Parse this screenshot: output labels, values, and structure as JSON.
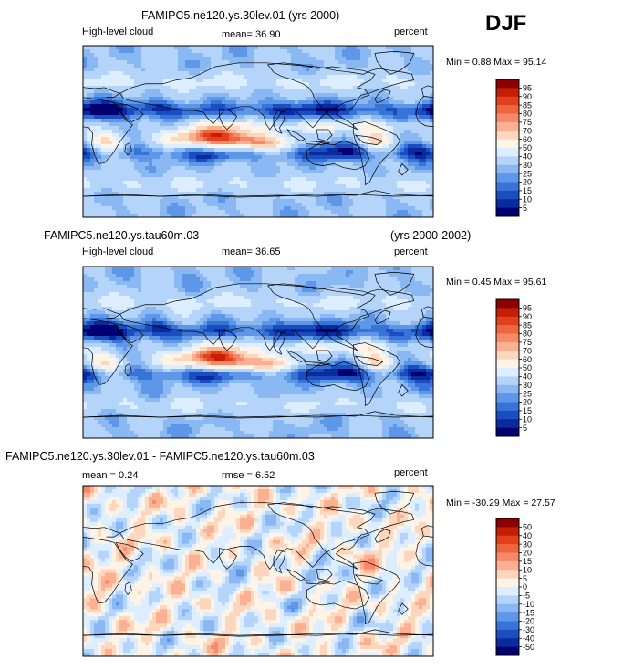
{
  "season": "DJF",
  "colors": {
    "map_boundary": "#000000",
    "background": "#ffffff"
  },
  "chart_data": [
    {
      "type": "heatmap",
      "title": "FAMIPC5.ne120.ys.30lev.01 (yrs 2000)",
      "left_label": "High-level cloud",
      "center_label": "mean=  36.90",
      "right_label": "percent",
      "stats_label": "Min =   0.88 Max =  95.14",
      "min": 0.88,
      "max": 95.14,
      "mean": 36.9,
      "colorbar": {
        "levels": [
          "95",
          "90",
          "85",
          "80",
          "75",
          "70",
          "60",
          "50",
          "40",
          "30",
          "25",
          "20",
          "15",
          "10",
          "5"
        ],
        "colors": [
          "#8c0000",
          "#c41e04",
          "#e0401c",
          "#ee6640",
          "#f68a68",
          "#fbb092",
          "#fdd6be",
          "#fdf3e6",
          "#dceeff",
          "#b5d4f9",
          "#8ab8f2",
          "#5f97e8",
          "#3873d8",
          "#1a4dc0",
          "#0a2aa0",
          "#000070"
        ]
      }
    },
    {
      "type": "heatmap",
      "title": "FAMIPC5.ne120.ys.tau60m.03",
      "years": "(yrs 2000-2002)",
      "left_label": "High-level cloud",
      "center_label": "mean=  36.65",
      "right_label": "percent",
      "stats_label": "Min =   0.45 Max =  95.61",
      "min": 0.45,
      "max": 95.61,
      "mean": 36.65,
      "colorbar": {
        "levels": [
          "95",
          "90",
          "85",
          "80",
          "75",
          "70",
          "60",
          "50",
          "40",
          "30",
          "25",
          "20",
          "15",
          "10",
          "5"
        ],
        "colors": [
          "#8c0000",
          "#c41e04",
          "#e0401c",
          "#ee6640",
          "#f68a68",
          "#fbb092",
          "#fdd6be",
          "#fdf3e6",
          "#dceeff",
          "#b5d4f9",
          "#8ab8f2",
          "#5f97e8",
          "#3873d8",
          "#1a4dc0",
          "#0a2aa0",
          "#000070"
        ]
      }
    },
    {
      "type": "heatmap",
      "title": "FAMIPC5.ne120.ys.30lev.01 - FAMIPC5.ne120.ys.tau60m.03",
      "mean_label": "mean =   0.24",
      "rmse_label": "rmse =   6.52",
      "right_label": "percent",
      "stats_label": "Min = -30.29 Max =  27.57",
      "min": -30.29,
      "max": 27.57,
      "mean": 0.24,
      "rmse": 6.52,
      "colorbar": {
        "levels": [
          "50",
          "40",
          "30",
          "20",
          "15",
          "10",
          "5",
          "0",
          "-5",
          "-10",
          "-15",
          "-20",
          "-30",
          "-40",
          "-50"
        ],
        "colors": [
          "#8c0000",
          "#c41e04",
          "#e0401c",
          "#ee6640",
          "#f68a68",
          "#fbb092",
          "#fdd6be",
          "#fdf3e6",
          "#dceeff",
          "#b5d4f9",
          "#8ab8f2",
          "#5f97e8",
          "#3873d8",
          "#1a4dc0",
          "#0a2aa0",
          "#000070"
        ]
      }
    }
  ]
}
